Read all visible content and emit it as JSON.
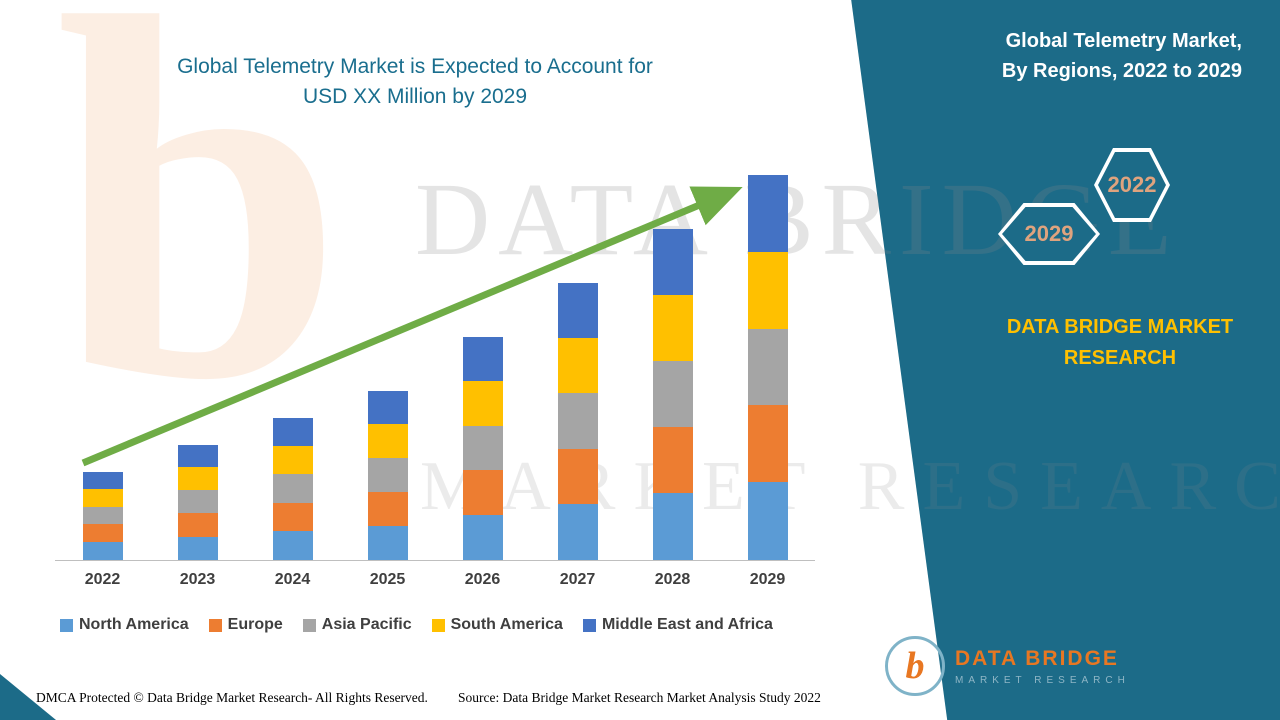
{
  "page": {
    "title_line1": "Global Telemetry Market is Expected to Account for",
    "title_line2": "USD XX Million by 2029"
  },
  "right_panel": {
    "heading_line1": "Global Telemetry Market,",
    "heading_line2": "By Regions, 2022 to 2029",
    "hexagons": [
      {
        "label": "2029"
      },
      {
        "label": "2022"
      }
    ],
    "brand": "DATA BRIDGE MARKET RESEARCH",
    "logo": {
      "letter": "b",
      "name": "DATA BRIDGE",
      "sub": "MARKET RESEARCH"
    }
  },
  "watermark": {
    "letter": "b",
    "line1": "DATA BRIDGE",
    "line2": "MARKET RESEARCH"
  },
  "footer": {
    "left": "DMCA Protected © Data Bridge Market Research- All Rights Reserved.",
    "source": "Source: Data Bridge Market Research Market Analysis Study 2022"
  },
  "colors": {
    "panel": "#1C6B88",
    "title": "#1A6E8E",
    "accent_orange": "#E87722",
    "brand_yellow": "#FFC000",
    "hex_label": "#DFA37E",
    "trend_arrow": "#6FAC46",
    "axis_text": "#3F3F3F"
  },
  "chart_data": {
    "type": "bar",
    "stacked": true,
    "title": "Global Telemetry Market is Expected to Account for USD XX Million by 2029",
    "xlabel": "",
    "ylabel": "",
    "y_axis_visible": false,
    "legend_position": "bottom",
    "grid": false,
    "note": "No numeric axis shown (USD XX Million); values are relative estimates normalized to 2029 total = 100, regions approximately equal shares",
    "categories": [
      "2022",
      "2023",
      "2024",
      "2025",
      "2026",
      "2027",
      "2028",
      "2029"
    ],
    "totals": [
      23,
      30,
      37,
      44,
      58,
      72,
      86,
      100
    ],
    "series": [
      {
        "name": "North America",
        "color": "#5B9BD5",
        "values": [
          4.7,
          6.1,
          7.5,
          8.9,
          11.7,
          14.5,
          17.3,
          20.2
        ]
      },
      {
        "name": "Europe",
        "color": "#ED7D31",
        "values": [
          4.6,
          6.0,
          7.4,
          8.8,
          11.6,
          14.4,
          17.2,
          20.0
        ]
      },
      {
        "name": "Asia Pacific",
        "color": "#A5A5A5",
        "values": [
          4.6,
          6.0,
          7.4,
          8.8,
          11.6,
          14.4,
          17.2,
          19.8
        ]
      },
      {
        "name": "South America",
        "color": "#FFC000",
        "values": [
          4.6,
          6.0,
          7.4,
          8.8,
          11.6,
          14.4,
          17.2,
          19.9
        ]
      },
      {
        "name": "Middle East and Africa",
        "color": "#4472C4",
        "values": [
          4.5,
          5.9,
          7.3,
          8.7,
          11.5,
          14.3,
          17.1,
          20.1
        ]
      }
    ],
    "annotations": [
      {
        "type": "trend-arrow",
        "direction": "up",
        "color": "#6FAC46"
      }
    ]
  }
}
